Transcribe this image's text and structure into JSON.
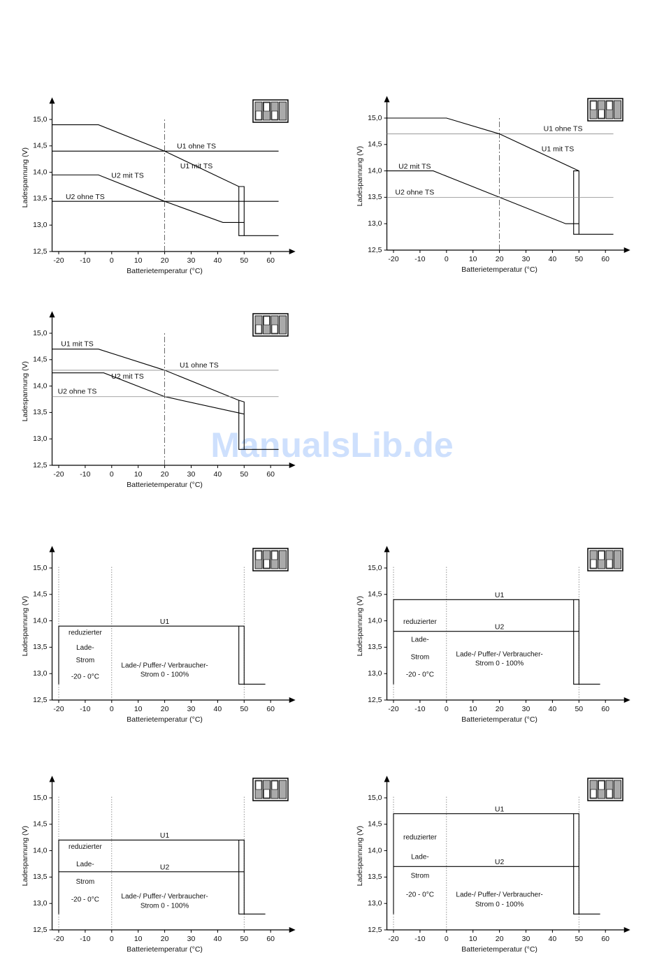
{
  "watermark": "ManualsLib.de",
  "chart_data": [
    {
      "type": "line",
      "xlabel": "Batterietemperatur (°C)",
      "ylabel": "Ladespannung (V)",
      "xlim": [
        -22.5,
        67
      ],
      "ylim": [
        12.5,
        15.3
      ],
      "xticks": [
        -20,
        -10,
        0,
        10,
        20,
        30,
        40,
        50,
        60
      ],
      "yticks": [
        {
          "value": 12.5,
          "label": "12,5"
        },
        {
          "value": 13.0,
          "label": "13,0"
        },
        {
          "value": 13.5,
          "label": "13,5"
        },
        {
          "value": 14.0,
          "label": "14,0"
        },
        {
          "value": 14.5,
          "label": "14,5"
        },
        {
          "value": 15.0,
          "label": "15,0"
        }
      ],
      "vlines": [
        20
      ],
      "vline_style": "dashed",
      "series": [
        {
          "name": "U1 ohne TS",
          "color": "#000000",
          "x": [
            -22.5,
            63
          ],
          "values": [
            14.4,
            14.4
          ]
        },
        {
          "name": "U1 mit TS",
          "color": "#000000",
          "x": [
            -22.5,
            -5,
            20,
            48,
            50,
            50,
            48,
            48,
            48,
            63
          ],
          "values": [
            14.9,
            14.9,
            14.4,
            13.73,
            13.73,
            12.8,
            12.8,
            13.73,
            12.8,
            12.8
          ]
        },
        {
          "name": "U2 mit TS",
          "color": "#000000",
          "x": [
            -22.5,
            -5,
            20,
            42,
            50
          ],
          "values": [
            13.95,
            13.95,
            13.45,
            13.05,
            13.05
          ]
        },
        {
          "name": "U2 ohne TS",
          "color": "#000000",
          "x": [
            -22.5,
            63
          ],
          "values": [
            13.45,
            13.45
          ]
        }
      ]
    },
    {
      "type": "line",
      "xlabel": "Batterietemperatur (°C)",
      "ylabel": "Ladespannung (V)",
      "xlim": [
        -22.5,
        67
      ],
      "ylim": [
        12.5,
        15.3
      ],
      "xticks": [
        -20,
        -10,
        0,
        10,
        20,
        30,
        40,
        50,
        60
      ],
      "yticks": [
        {
          "value": 12.5,
          "label": "12,5"
        },
        {
          "value": 13.0,
          "label": "13,0"
        },
        {
          "value": 13.5,
          "label": "13,5"
        },
        {
          "value": 14.0,
          "label": "14,0"
        },
        {
          "value": 14.5,
          "label": "14,5"
        },
        {
          "value": 15.0,
          "label": "15,0"
        }
      ],
      "vlines": [
        20
      ],
      "vline_style": "dashed",
      "series": [
        {
          "name": "U1 ohne TS",
          "color": "#888888",
          "x": [
            -22.5,
            63
          ],
          "values": [
            14.7,
            14.7
          ]
        },
        {
          "name": "U1 mit TS",
          "color": "#000000",
          "x": [
            -22.5,
            0,
            20,
            50,
            50,
            48,
            48,
            50,
            50,
            63
          ],
          "values": [
            15.0,
            15.0,
            14.7,
            14.0,
            12.8,
            12.8,
            14.0,
            14.0,
            12.8,
            12.8
          ]
        },
        {
          "name": "U2 mit TS",
          "color": "#000000",
          "x": [
            -22.5,
            -5,
            20,
            45,
            50
          ],
          "values": [
            14.0,
            14.0,
            13.5,
            13.0,
            13.0
          ]
        },
        {
          "name": "U2 ohne TS",
          "color": "#888888",
          "x": [
            -22.5,
            63
          ],
          "values": [
            13.5,
            13.5
          ]
        }
      ]
    },
    {
      "type": "line",
      "xlabel": "Batterietemperatur (°C)",
      "ylabel": "Ladespannung (V)",
      "xlim": [
        -22.5,
        67
      ],
      "ylim": [
        12.5,
        15.3
      ],
      "xticks": [
        -20,
        -10,
        0,
        10,
        20,
        30,
        40,
        50,
        60
      ],
      "yticks": [
        {
          "value": 12.5,
          "label": "12,5"
        },
        {
          "value": 13.0,
          "label": "13,0"
        },
        {
          "value": 13.5,
          "label": "13,5"
        },
        {
          "value": 14.0,
          "label": "14,0"
        },
        {
          "value": 14.5,
          "label": "14,5"
        },
        {
          "value": 15.0,
          "label": "15,0"
        }
      ],
      "vlines": [
        20
      ],
      "vline_style": "dashed",
      "series": [
        {
          "name": "U1 mit TS",
          "color": "#000000",
          "x": [
            -22.5,
            -5,
            20,
            48,
            50,
            50,
            48,
            48,
            48,
            63
          ],
          "values": [
            14.7,
            14.7,
            14.3,
            13.73,
            13.7,
            12.8,
            12.8,
            13.73,
            12.8,
            12.8
          ]
        },
        {
          "name": "U1 ohne TS",
          "color": "#888888",
          "x": [
            -22.5,
            63
          ],
          "values": [
            14.3,
            14.3
          ]
        },
        {
          "name": "U2 mit TS",
          "color": "#000000",
          "x": [
            -22.5,
            -3,
            20,
            50
          ],
          "values": [
            14.25,
            14.25,
            13.8,
            13.47
          ]
        },
        {
          "name": "U2 ohne TS",
          "color": "#888888",
          "x": [
            -22.5,
            63
          ],
          "values": [
            13.8,
            13.8
          ]
        }
      ]
    },
    {
      "type": "line",
      "xlabel": "Batterietemperatur (°C)",
      "ylabel": "Ladespannung (V)",
      "xlim": [
        -22.5,
        67
      ],
      "ylim": [
        12.5,
        15.3
      ],
      "xticks": [
        -20,
        -10,
        0,
        10,
        20,
        30,
        40,
        50,
        60
      ],
      "yticks": [
        {
          "value": 12.5,
          "label": "12,5"
        },
        {
          "value": 13.0,
          "label": "13,0"
        },
        {
          "value": 13.5,
          "label": "13,5"
        },
        {
          "value": 14.0,
          "label": "14,0"
        },
        {
          "value": 14.5,
          "label": "14,5"
        },
        {
          "value": 15.0,
          "label": "15,0"
        }
      ],
      "vlines": [
        -20,
        0,
        50
      ],
      "vline_style": "dotted",
      "notes": [
        "reduzierter",
        "Lade-",
        "Strom",
        "-20 - 0°C",
        "Lade-/ Puffer-/ Verbraucher-",
        "Strom  0 - 100%"
      ],
      "series": [
        {
          "name": "U1",
          "color": "#000000",
          "x": [
            -20,
            -20,
            50,
            50,
            48,
            48,
            48,
            58
          ],
          "values": [
            12.8,
            13.9,
            13.9,
            12.8,
            12.8,
            13.9,
            12.8,
            12.8
          ]
        }
      ]
    },
    {
      "type": "line",
      "xlabel": "Batterietemperatur (°C)",
      "ylabel": "Ladespannung (V)",
      "xlim": [
        -22.5,
        67
      ],
      "ylim": [
        12.5,
        15.3
      ],
      "xticks": [
        -20,
        -10,
        0,
        10,
        20,
        30,
        40,
        50,
        60
      ],
      "yticks": [
        {
          "value": 12.5,
          "label": "12,5"
        },
        {
          "value": 13.0,
          "label": "13,0"
        },
        {
          "value": 13.5,
          "label": "13,5"
        },
        {
          "value": 14.0,
          "label": "14,0"
        },
        {
          "value": 14.5,
          "label": "14,5"
        },
        {
          "value": 15.0,
          "label": "15,0"
        }
      ],
      "vlines": [
        -20,
        0,
        50
      ],
      "vline_style": "dotted",
      "notes": [
        "reduzierter",
        "Lade-",
        "Strom",
        "-20 - 0°C",
        "Lade-/ Puffer-/ Verbraucher-",
        "Strom  0 - 100%"
      ],
      "series": [
        {
          "name": "U1",
          "color": "#000000",
          "x": [
            -20,
            -20,
            50,
            50,
            48,
            48,
            48,
            58
          ],
          "values": [
            12.8,
            14.4,
            14.4,
            12.8,
            12.8,
            14.4,
            12.8,
            12.8
          ]
        },
        {
          "name": "U2",
          "color": "#000000",
          "x": [
            -20,
            50
          ],
          "values": [
            13.8,
            13.8
          ]
        }
      ]
    },
    {
      "type": "line",
      "xlabel": "Batterietemperatur (°C)",
      "ylabel": "Ladespannung (V)",
      "xlim": [
        -22.5,
        67
      ],
      "ylim": [
        12.5,
        15.3
      ],
      "xticks": [
        -20,
        -10,
        0,
        10,
        20,
        30,
        40,
        50,
        60
      ],
      "yticks": [
        {
          "value": 12.5,
          "label": "12,5"
        },
        {
          "value": 13.0,
          "label": "13,0"
        },
        {
          "value": 13.5,
          "label": "13,5"
        },
        {
          "value": 14.0,
          "label": "14,0"
        },
        {
          "value": 14.5,
          "label": "14,5"
        },
        {
          "value": 15.0,
          "label": "15,0"
        }
      ],
      "vlines": [
        -20,
        0,
        50
      ],
      "vline_style": "dotted",
      "notes": [
        "reduzierter",
        "Lade-",
        "Strom",
        "-20 - 0°C",
        "Lade-/ Puffer-/ Verbraucher-",
        "Strom  0 - 100%"
      ],
      "series": [
        {
          "name": "U1",
          "color": "#000000",
          "x": [
            -20,
            -20,
            50,
            50,
            48,
            48,
            48,
            58
          ],
          "values": [
            12.8,
            14.2,
            14.2,
            12.8,
            12.8,
            14.2,
            12.8,
            12.8
          ]
        },
        {
          "name": "U2",
          "color": "#000000",
          "x": [
            -20,
            50
          ],
          "values": [
            13.6,
            13.6
          ]
        }
      ]
    },
    {
      "type": "line",
      "xlabel": "Batterietemperatur (°C)",
      "ylabel": "Ladespannung (V)",
      "xlim": [
        -22.5,
        67
      ],
      "ylim": [
        12.5,
        15.3
      ],
      "xticks": [
        -20,
        -10,
        0,
        10,
        20,
        30,
        40,
        50,
        60
      ],
      "yticks": [
        {
          "value": 12.5,
          "label": "12,5"
        },
        {
          "value": 13.0,
          "label": "13,0"
        },
        {
          "value": 13.5,
          "label": "13,5"
        },
        {
          "value": 14.0,
          "label": "14,0"
        },
        {
          "value": 14.5,
          "label": "14,5"
        },
        {
          "value": 15.0,
          "label": "15,0"
        }
      ],
      "vlines": [
        -20,
        0,
        50
      ],
      "vline_style": "dotted",
      "notes": [
        "reduzierter",
        "Lade-",
        "Strom",
        "-20 - 0°C",
        "Lade-/ Puffer-/ Verbraucher-",
        "Strom  0 - 100%"
      ],
      "series": [
        {
          "name": "U1",
          "color": "#000000",
          "x": [
            -20,
            -20,
            50,
            50,
            48,
            48,
            48,
            58
          ],
          "values": [
            12.8,
            14.7,
            14.7,
            12.8,
            12.8,
            14.7,
            12.8,
            12.8
          ]
        },
        {
          "name": "U2",
          "color": "#000000",
          "x": [
            -20,
            50
          ],
          "values": [
            13.7,
            13.7
          ]
        }
      ]
    }
  ]
}
